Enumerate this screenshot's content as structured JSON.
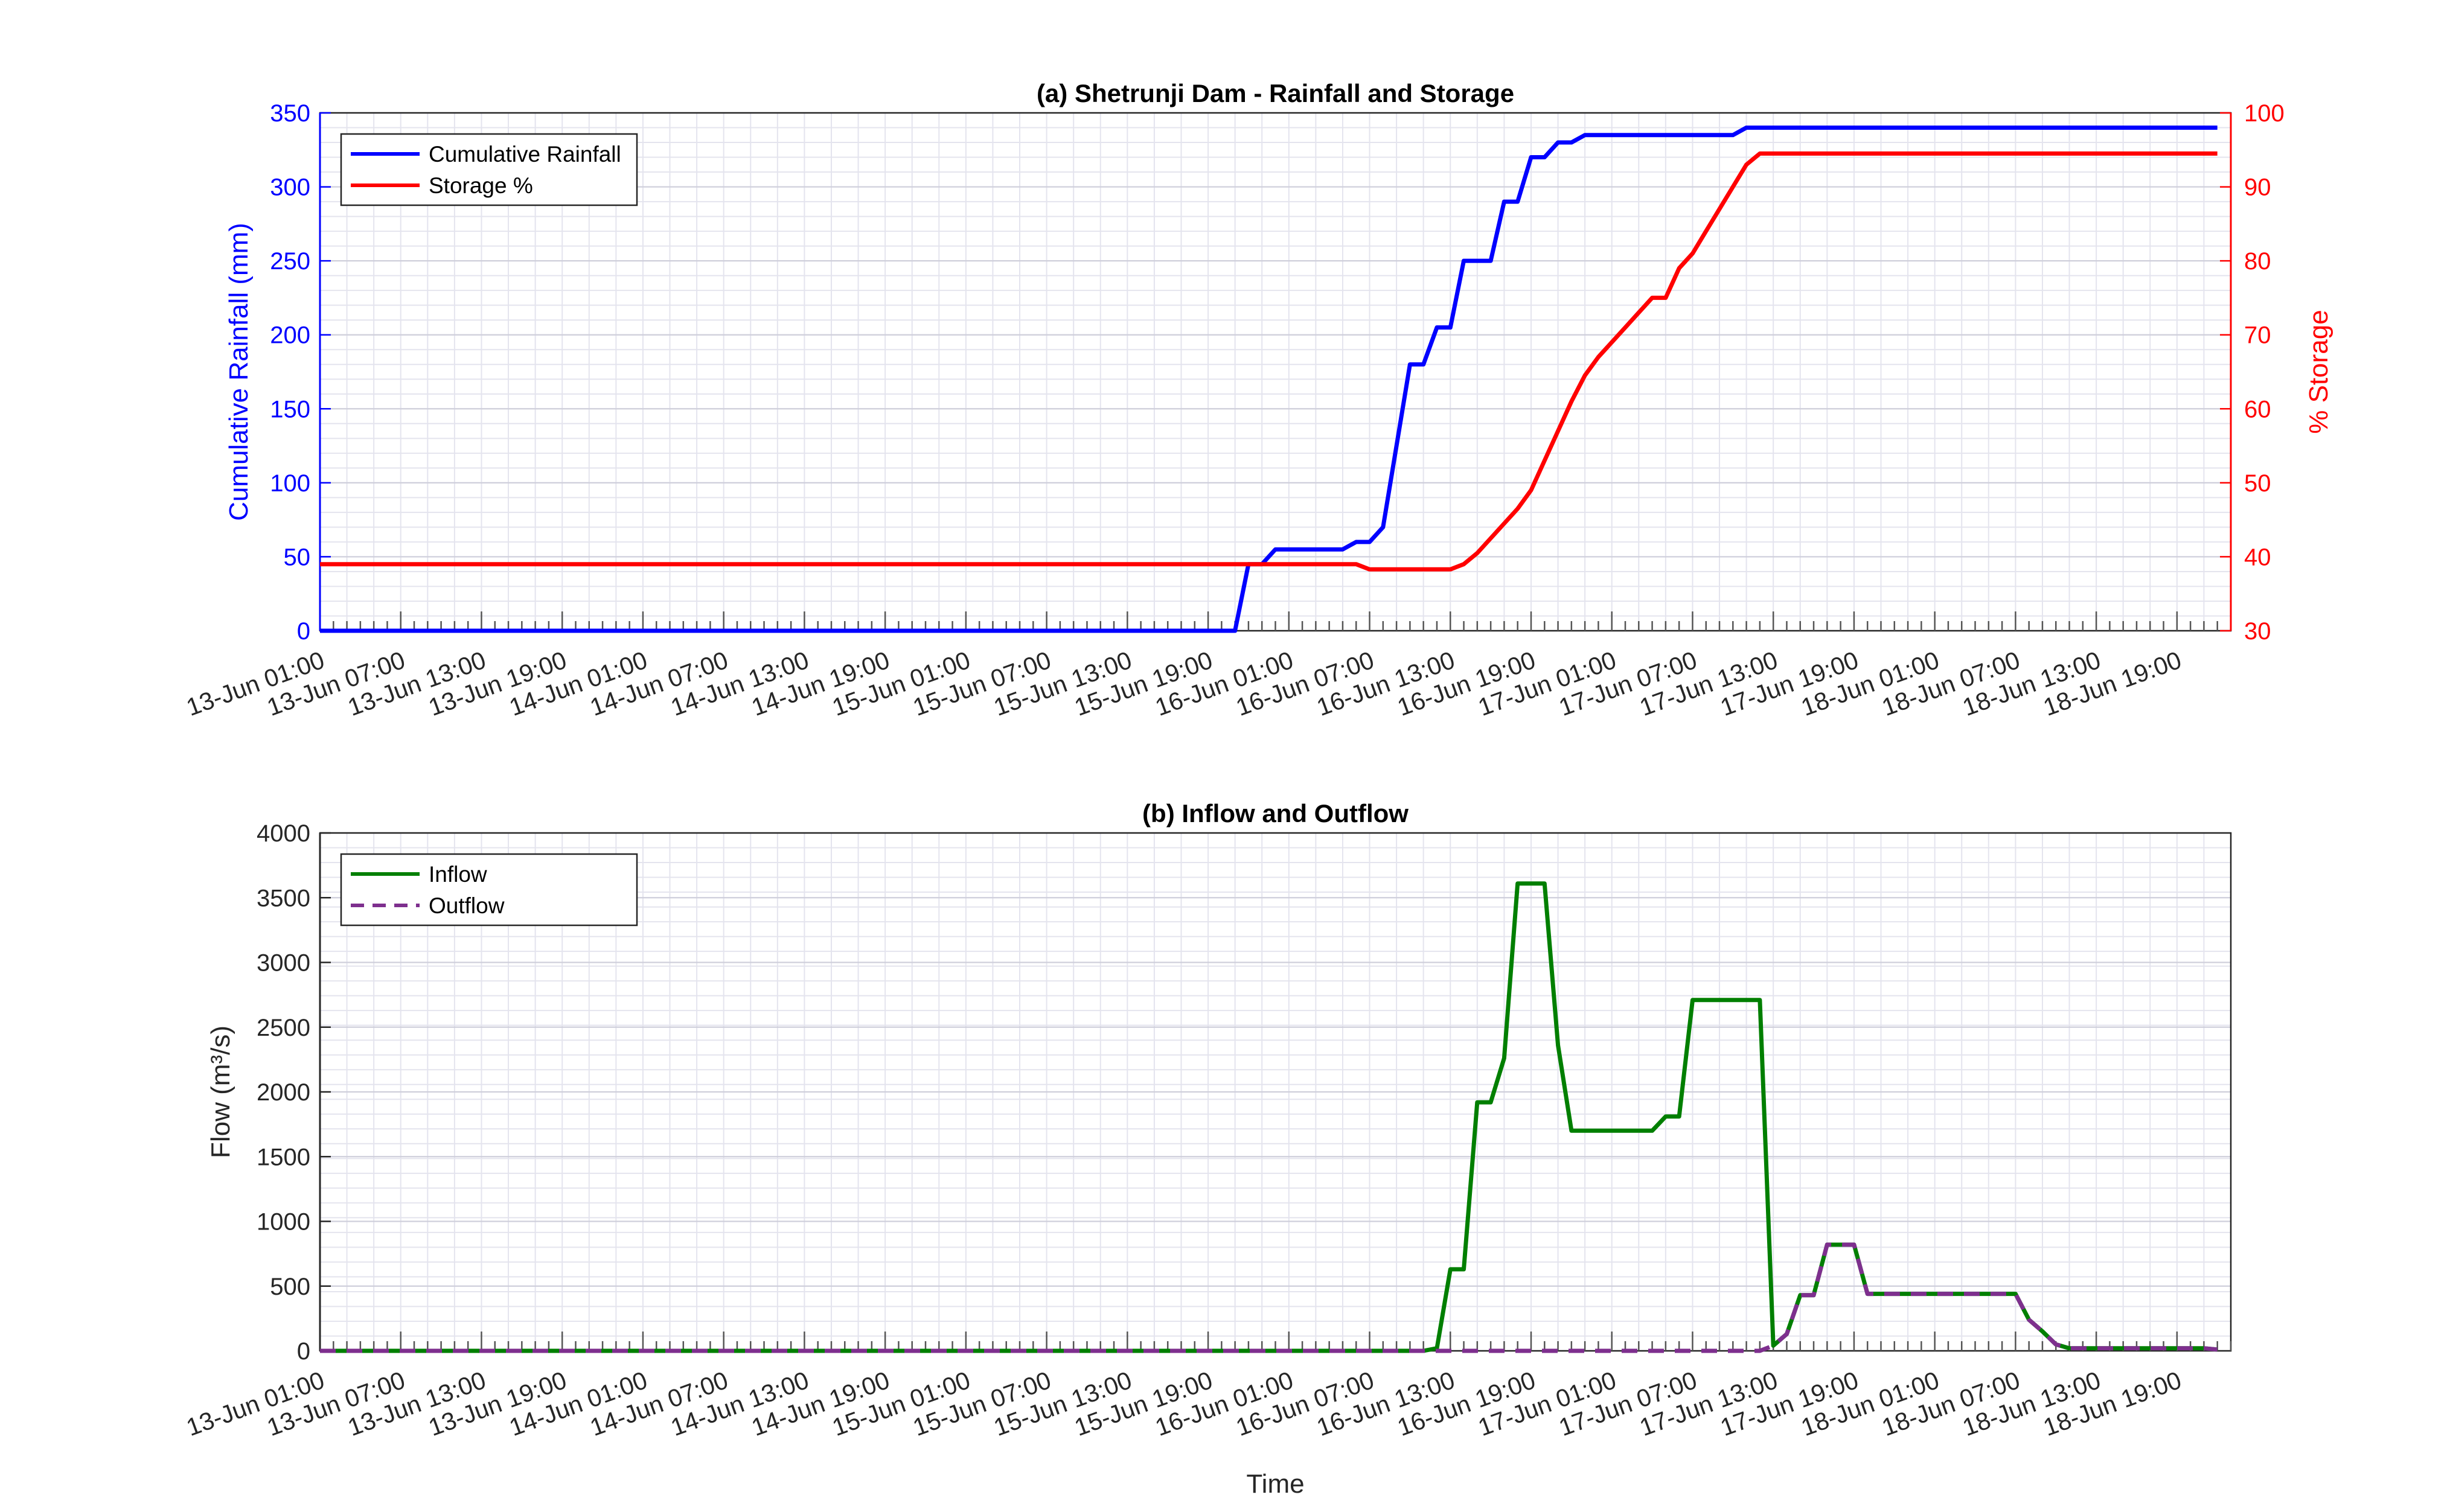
{
  "chart_data": [
    {
      "type": "line",
      "title": "(a) Shetrunji Dam - Rainfall and Storage",
      "xlabel": "",
      "ylabel": "Cumulative Rainfall (mm)",
      "ylabel_right": "% Storage",
      "ylim": [
        0,
        350
      ],
      "ylim_right": [
        30,
        100
      ],
      "yticks": [
        0,
        50,
        100,
        150,
        200,
        250,
        300,
        350
      ],
      "yticks_right": [
        30,
        40,
        50,
        60,
        70,
        80,
        90,
        100
      ],
      "xlim": [
        "13-Jun 01:00",
        "18-Jun 23:00"
      ],
      "x_tick_labels": [
        "13-Jun 01:00",
        "13-Jun 07:00",
        "13-Jun 13:00",
        "13-Jun 19:00",
        "14-Jun 01:00",
        "14-Jun 07:00",
        "14-Jun 13:00",
        "14-Jun 19:00",
        "15-Jun 01:00",
        "15-Jun 07:00",
        "15-Jun 13:00",
        "15-Jun 19:00",
        "16-Jun 01:00",
        "16-Jun 07:00",
        "16-Jun 13:00",
        "16-Jun 19:00",
        "17-Jun 01:00",
        "17-Jun 07:00",
        "17-Jun 13:00",
        "17-Jun 19:00",
        "18-Jun 01:00",
        "18-Jun 07:00",
        "18-Jun 13:00",
        "18-Jun 19:00"
      ],
      "grid": true,
      "legend": "top-left",
      "series": [
        {
          "name": "Cumulative Rainfall",
          "axis": "left",
          "color": "#0000ff",
          "dash": "solid",
          "x": [
            "13-Jun 01:00",
            "15-Jun 21:00",
            "15-Jun 22:00",
            "15-Jun 23:00",
            "16-Jun 00:00",
            "16-Jun 01:00",
            "16-Jun 05:00",
            "16-Jun 06:00",
            "16-Jun 07:00",
            "16-Jun 08:00",
            "16-Jun 10:00",
            "16-Jun 11:00",
            "16-Jun 12:00",
            "16-Jun 13:00",
            "16-Jun 14:00",
            "16-Jun 16:00",
            "16-Jun 17:00",
            "16-Jun 18:00",
            "16-Jun 19:00",
            "16-Jun 20:00",
            "16-Jun 21:00",
            "16-Jun 22:00",
            "16-Jun 23:00",
            "17-Jun 00:00",
            "17-Jun 10:00",
            "17-Jun 11:00",
            "18-Jun 22:00"
          ],
          "values": [
            0,
            0,
            45,
            45,
            55,
            55,
            55,
            60,
            60,
            70,
            180,
            180,
            205,
            205,
            250,
            250,
            290,
            290,
            320,
            320,
            330,
            330,
            335,
            335,
            335,
            340,
            340
          ]
        },
        {
          "name": "Storage %",
          "axis": "right",
          "color": "#ff0000",
          "dash": "solid",
          "x": [
            "13-Jun 01:00",
            "16-Jun 06:00",
            "16-Jun 07:00",
            "16-Jun 13:00",
            "16-Jun 14:00",
            "16-Jun 15:00",
            "16-Jun 16:00",
            "16-Jun 17:00",
            "16-Jun 18:00",
            "16-Jun 19:00",
            "16-Jun 20:00",
            "16-Jun 21:00",
            "16-Jun 22:00",
            "16-Jun 23:00",
            "17-Jun 00:00",
            "17-Jun 01:00",
            "17-Jun 02:00",
            "17-Jun 03:00",
            "17-Jun 04:00",
            "17-Jun 05:00",
            "17-Jun 06:00",
            "17-Jun 07:00",
            "17-Jun 08:00",
            "17-Jun 09:00",
            "17-Jun 10:00",
            "17-Jun 11:00",
            "17-Jun 12:00",
            "17-Jun 13:00",
            "18-Jun 22:00"
          ],
          "values": [
            39,
            39,
            38.3,
            38.3,
            39,
            40.5,
            42.5,
            44.5,
            46.5,
            49,
            53,
            57,
            61,
            64.5,
            67,
            69,
            71,
            73,
            75,
            75,
            79,
            81,
            84,
            87,
            90,
            93,
            94.5,
            94.5,
            94.5
          ]
        }
      ]
    },
    {
      "type": "line",
      "title": "(b) Inflow and Outflow",
      "xlabel": "Time",
      "ylabel": "Flow (m³/s)",
      "ylim": [
        0,
        4000
      ],
      "yticks": [
        0,
        500,
        1000,
        1500,
        2000,
        2500,
        3000,
        3500,
        4000
      ],
      "xlim": [
        "13-Jun 01:00",
        "18-Jun 23:00"
      ],
      "x_tick_labels": [
        "13-Jun 01:00",
        "13-Jun 07:00",
        "13-Jun 13:00",
        "13-Jun 19:00",
        "14-Jun 01:00",
        "14-Jun 07:00",
        "14-Jun 13:00",
        "14-Jun 19:00",
        "15-Jun 01:00",
        "15-Jun 07:00",
        "15-Jun 13:00",
        "15-Jun 19:00",
        "16-Jun 01:00",
        "16-Jun 07:00",
        "16-Jun 13:00",
        "16-Jun 19:00",
        "17-Jun 01:00",
        "17-Jun 07:00",
        "17-Jun 13:00",
        "17-Jun 19:00",
        "18-Jun 01:00",
        "18-Jun 07:00",
        "18-Jun 13:00",
        "18-Jun 19:00"
      ],
      "grid": true,
      "legend": "top-left",
      "series": [
        {
          "name": "Inflow",
          "color": "#007f00",
          "dash": "solid",
          "x": [
            "13-Jun 01:00",
            "16-Jun 11:00",
            "16-Jun 12:00",
            "16-Jun 13:00",
            "16-Jun 14:00",
            "16-Jun 15:00",
            "16-Jun 16:00",
            "16-Jun 17:00",
            "16-Jun 18:00",
            "16-Jun 19:00",
            "16-Jun 20:00",
            "16-Jun 21:00",
            "16-Jun 22:00",
            "16-Jun 23:00",
            "17-Jun 04:00",
            "17-Jun 05:00",
            "17-Jun 06:00",
            "17-Jun 07:00",
            "17-Jun 11:00",
            "17-Jun 12:00",
            "17-Jun 13:00",
            "17-Jun 14:00",
            "17-Jun 15:00",
            "17-Jun 16:00",
            "17-Jun 17:00",
            "17-Jun 18:00",
            "17-Jun 19:00",
            "17-Jun 20:00",
            "18-Jun 06:00",
            "18-Jun 07:00",
            "18-Jun 08:00",
            "18-Jun 09:00",
            "18-Jun 10:00",
            "18-Jun 11:00",
            "18-Jun 21:00",
            "18-Jun 22:00"
          ],
          "values": [
            0,
            0,
            20,
            630,
            630,
            1920,
            1920,
            2260,
            3610,
            3610,
            3610,
            2360,
            1700,
            1700,
            1700,
            1810,
            1810,
            2710,
            2710,
            2710,
            40,
            130,
            430,
            430,
            820,
            820,
            820,
            440,
            440,
            440,
            240,
            150,
            50,
            20,
            20,
            10
          ]
        },
        {
          "name": "Outflow",
          "color": "#7e2f8e",
          "dash": "dashed",
          "x": [
            "13-Jun 01:00",
            "17-Jun 12:00",
            "17-Jun 13:00",
            "17-Jun 14:00",
            "17-Jun 15:00",
            "17-Jun 16:00",
            "17-Jun 17:00",
            "17-Jun 18:00",
            "17-Jun 19:00",
            "17-Jun 20:00",
            "18-Jun 06:00",
            "18-Jun 07:00",
            "18-Jun 08:00",
            "18-Jun 09:00",
            "18-Jun 10:00",
            "18-Jun 11:00",
            "18-Jun 21:00",
            "18-Jun 22:00"
          ],
          "values": [
            0,
            0,
            40,
            130,
            430,
            430,
            820,
            820,
            820,
            440,
            440,
            440,
            240,
            150,
            50,
            20,
            20,
            10
          ]
        }
      ]
    }
  ]
}
